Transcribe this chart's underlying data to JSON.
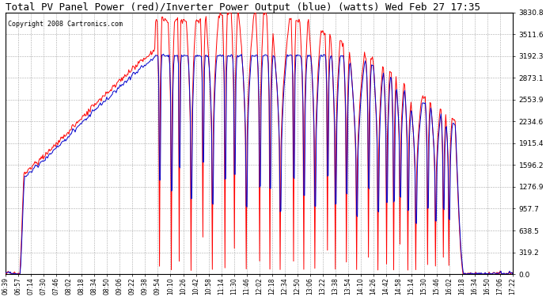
{
  "title": "Total PV Panel Power (red)/Inverter Power Output (blue) (watts) Wed Feb 27 17:35",
  "copyright": "Copyright 2008 Cartronics.com",
  "y_ticks": [
    0.0,
    319.2,
    638.5,
    957.7,
    1276.9,
    1596.2,
    1915.4,
    2234.6,
    2553.9,
    2873.1,
    3192.3,
    3511.6,
    3830.8
  ],
  "y_max": 3830.8,
  "y_min": 0.0,
  "x_labels": [
    "06:39",
    "06:57",
    "07:14",
    "07:30",
    "07:46",
    "08:02",
    "08:18",
    "08:34",
    "08:50",
    "09:06",
    "09:22",
    "09:38",
    "09:54",
    "10:10",
    "10:26",
    "10:42",
    "10:58",
    "11:14",
    "11:30",
    "11:46",
    "12:02",
    "12:18",
    "12:34",
    "12:50",
    "13:06",
    "13:22",
    "13:38",
    "13:54",
    "14:10",
    "14:26",
    "14:42",
    "14:58",
    "15:14",
    "15:30",
    "15:46",
    "16:02",
    "16:18",
    "16:34",
    "16:50",
    "17:06",
    "17:22"
  ],
  "background_color": "#ffffff",
  "plot_bg_color": "#ffffff",
  "grid_color": "#aaaaaa",
  "red_color": "#ff0000",
  "blue_color": "#0000cc",
  "title_fontsize": 9,
  "copyright_fontsize": 6,
  "inverter_cap": 3200,
  "pv_peak": 3830.0
}
